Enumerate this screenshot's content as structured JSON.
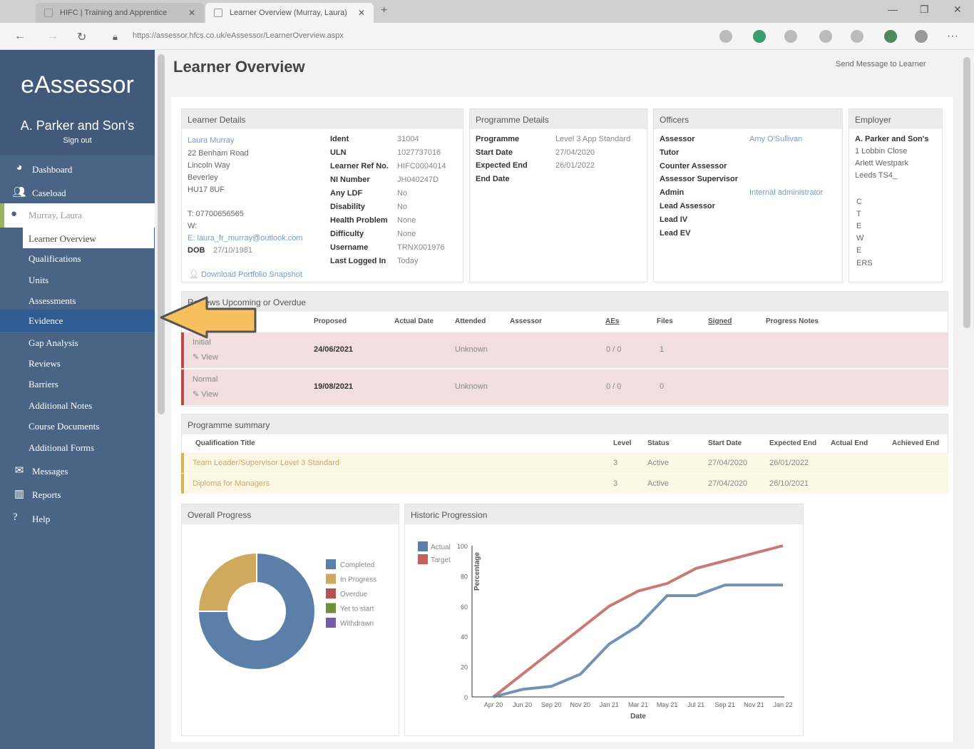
{
  "browser": {
    "tab1_title": "HIFC | Training and Apprentice",
    "tab2_title": "Learner Overview (Murray, Laura)",
    "url": "https://assessor.hfcs.co.uk/eAssessor/LearnerOverview.aspx"
  },
  "sidebar": {
    "brand": "eAssessor",
    "client": "A. Parker and Son's",
    "sign_out": "Sign out",
    "nav": [
      {
        "label": "Dashboard",
        "icon": "dashboard-icon"
      },
      {
        "label": "Caseload",
        "icon": "users-icon"
      }
    ],
    "learner_name": "Murray, Laura",
    "learner_sub": [
      "Learner Overview",
      "Qualifications",
      "Units",
      "Assessments",
      "Evidence",
      "Gap Analysis",
      "Reviews",
      "Barriers",
      "Additional Notes",
      "Course Documents",
      "Additional Forms"
    ],
    "bottom_nav": [
      {
        "label": "Messages",
        "icon": "envelope-icon"
      },
      {
        "label": "Reports",
        "icon": "bar-chart-icon"
      },
      {
        "label": "Help",
        "icon": "help-icon"
      }
    ]
  },
  "page": {
    "title": "Learner Overview",
    "send_message": "Send Message to Learner"
  },
  "learner_details": {
    "header": "Learner Details",
    "name": "Laura Murray",
    "address": [
      "22 Benham Road",
      "Lincoln Way",
      "Beverley",
      "HU17 8UF"
    ],
    "phone": "T: 07700656565",
    "w": "W:",
    "email": "E: laura_fr_murray@outlook.com",
    "dob_label": "DOB",
    "dob": "27/10/1981",
    "download": "Download Portfolio Snapshot",
    "fields": [
      {
        "k": "Ident",
        "v": "31004"
      },
      {
        "k": "ULN",
        "v": "1027737016"
      },
      {
        "k": "Learner Ref No.",
        "v": "HIFC0004014"
      },
      {
        "k": "NI Number",
        "v": "JH040247D"
      },
      {
        "k": "Any LDF",
        "v": "No"
      },
      {
        "k": "Disability",
        "v": "No"
      },
      {
        "k": "Health Problem",
        "v": "None"
      },
      {
        "k": "Difficulty",
        "v": "None"
      },
      {
        "k": "Username",
        "v": "TRNX001976"
      },
      {
        "k": "Last Logged In",
        "v": "Today"
      }
    ]
  },
  "programme_details": {
    "header": "Programme Details",
    "fields": [
      {
        "k": "Programme",
        "v": "Level 3 App Standard"
      },
      {
        "k": "Start Date",
        "v": "27/04/2020"
      },
      {
        "k": "Expected End",
        "v": "26/01/2022"
      },
      {
        "k": "End Date",
        "v": ""
      }
    ]
  },
  "officers": {
    "header": "Officers",
    "fields": [
      {
        "k": "Assessor",
        "v": "Amy O'Sullivan"
      },
      {
        "k": "Tutor",
        "v": ""
      },
      {
        "k": "Counter Assessor",
        "v": ""
      },
      {
        "k": "Assessor Supervisor",
        "v": ""
      },
      {
        "k": "Admin",
        "v": "Internal administrator"
      },
      {
        "k": "Lead Assessor",
        "v": ""
      },
      {
        "k": "Lead IV",
        "v": ""
      },
      {
        "k": "Lead EV",
        "v": ""
      }
    ]
  },
  "employer": {
    "header": "Employer",
    "name": "A. Parker and Son's",
    "lines": [
      "1 Lobbin Close",
      "Arlett Westpark",
      "Leeds TS4_"
    ],
    "letters": [
      "C",
      "T",
      "E",
      "W",
      "E"
    ],
    "ers": "ERS"
  },
  "reviews": {
    "header": "Reviews Upcoming or Overdue",
    "columns": [
      "Proposed",
      "Actual Date",
      "Attended",
      "Assessor",
      "AEs",
      "Files",
      "Signed",
      "Progress Notes"
    ],
    "rows": [
      {
        "type": "Initial",
        "view": "View",
        "proposed": "24/06/2021",
        "attended": "Unknown",
        "aes": "0 / 0",
        "files": "1"
      },
      {
        "type": "Normal",
        "view": "View",
        "proposed": "19/08/2021",
        "attended": "Unknown",
        "aes": "0 / 0",
        "files": "0"
      }
    ]
  },
  "programme_summary": {
    "header": "Programme summary",
    "columns": [
      "Qualification Title",
      "Level",
      "Status",
      "Start Date",
      "Expected End",
      "Actual End",
      "Achieved End"
    ],
    "rows": [
      {
        "title": "Team Leader/Supervisor Level 3 Standard",
        "level": "3",
        "status": "Active",
        "start": "27/04/2020",
        "expected": "26/01/2022"
      },
      {
        "title": "Diploma for Managers",
        "level": "3",
        "status": "Active",
        "start": "27/04/2020",
        "expected": "26/10/2021"
      }
    ]
  },
  "overall_progress": {
    "header": "Overall Progress",
    "legend": [
      "Completed",
      "In Progress",
      "Overdue",
      "Yet to start",
      "Withdrawn"
    ]
  },
  "historic": {
    "header": "Historic Progression"
  },
  "chart_data": [
    {
      "type": "pie",
      "title": "Overall Progress",
      "categories": [
        "Completed",
        "In Progress",
        "Overdue",
        "Yet to start",
        "Withdrawn"
      ],
      "values": [
        75,
        25,
        0,
        0,
        0
      ],
      "colors": [
        "#5b7fa8",
        "#cfa95d",
        "#b5514f",
        "#6f8f3a",
        "#7a5aa6"
      ]
    },
    {
      "type": "line",
      "title": "Historic Progression",
      "x": [
        "Apr 20",
        "Jun 20",
        "Sep 20",
        "Nov 20",
        "Jan 21",
        "Mar 21",
        "May 21",
        "Jul 21",
        "Sep 21",
        "Nov 21",
        "Jan 22"
      ],
      "xlabel": "Date",
      "ylabel": "Percentage",
      "ylim": [
        0,
        100
      ],
      "yticks": [
        0,
        20,
        40,
        60,
        80,
        100
      ],
      "series": [
        {
          "name": "Actual",
          "color": "#5b7fa8",
          "points": [
            [
              0,
              0
            ],
            [
              1,
              5
            ],
            [
              2,
              7
            ],
            [
              3,
              15
            ],
            [
              4,
              35
            ],
            [
              5,
              47
            ],
            [
              6,
              67
            ],
            [
              7,
              67
            ],
            [
              8,
              74
            ],
            [
              9,
              74
            ],
            [
              10,
              74
            ]
          ]
        },
        {
          "name": "Target",
          "color": "#c0615e",
          "points": [
            [
              0,
              0
            ],
            [
              1,
              15
            ],
            [
              2,
              30
            ],
            [
              3,
              45
            ],
            [
              4,
              60
            ],
            [
              5,
              70
            ],
            [
              6,
              75
            ],
            [
              7,
              85
            ],
            [
              8,
              90
            ],
            [
              9,
              95
            ],
            [
              10,
              100
            ]
          ]
        }
      ]
    }
  ]
}
